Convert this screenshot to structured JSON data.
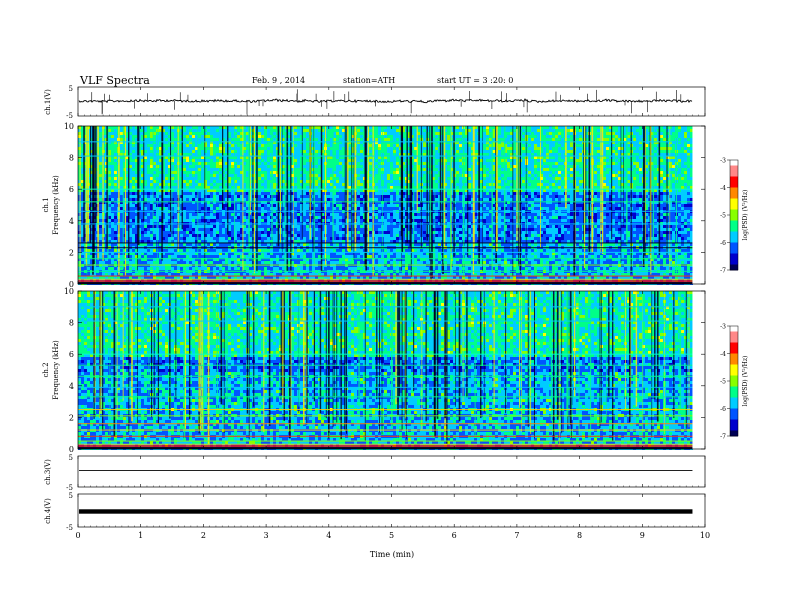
{
  "header": {
    "title": "VLF Spectra",
    "date": "Feb. 9 , 2014",
    "station": "station=ATH",
    "start": "start UT = 3 :20: 0"
  },
  "chart_data": [
    {
      "type": "line",
      "ylabel": "ch.1(V)",
      "ylim": [
        -5,
        5
      ],
      "yticks": [
        "5",
        "-5"
      ],
      "description_level": 0.6,
      "noise": "small"
    },
    {
      "type": "heatmap",
      "ylabel_channel": "ch.1",
      "ylabel": "Frequency (kHz)",
      "ylim": [
        0,
        10
      ],
      "yticks": [
        "0",
        "2",
        "4",
        "6",
        "8",
        "10"
      ],
      "colorbar": {
        "label": "log(PSD) (V²/Hz)",
        "ticks": [
          "-3",
          "-4",
          "-5",
          "-6",
          "-7"
        ],
        "range": [
          -7,
          -3
        ]
      }
    },
    {
      "type": "heatmap",
      "ylabel_channel": "ch.2",
      "ylabel": "Frequency (kHz)",
      "ylim": [
        0,
        10
      ],
      "yticks": [
        "0",
        "2",
        "4",
        "6",
        "8",
        "10"
      ],
      "colorbar": {
        "label": "log(PSD) (V²/Hz)",
        "ticks": [
          "-3",
          "-4",
          "-5",
          "-6",
          "-7"
        ],
        "range": [
          -7,
          -3
        ]
      }
    },
    {
      "type": "line",
      "ylabel": "ch.3(V)",
      "ylim": [
        -5,
        5
      ],
      "yticks": [
        "5",
        "-5"
      ]
    },
    {
      "type": "line",
      "ylabel": "ch.4(V)",
      "ylim": [
        -5,
        5
      ],
      "yticks": [
        "5",
        "-5"
      ]
    }
  ],
  "xaxis": {
    "label": "Time (min)",
    "xlim": [
      0,
      10
    ],
    "ticks": [
      "0",
      "1",
      "2",
      "3",
      "4",
      "5",
      "6",
      "7",
      "8",
      "9",
      "10"
    ],
    "data_end": 9.8
  },
  "colors": {
    "colormap": [
      "#000055",
      "#0000cc",
      "#0055ff",
      "#00ccff",
      "#00ff88",
      "#88ff00",
      "#ffff00",
      "#ff8800",
      "#ff0000",
      "#ff8888",
      "#ffffff"
    ]
  }
}
